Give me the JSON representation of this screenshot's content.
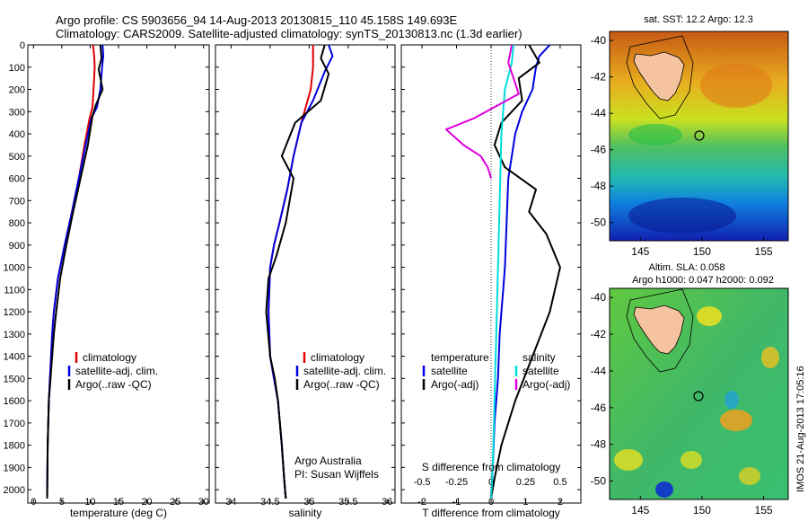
{
  "header": {
    "title_line1": "Argo profile: CS 5903656_94 14-Aug-2013 20130815_110 45.158S 149.693E",
    "title_line2": "Climatology: CARS2009. Satellite-adjusted climatology: synTS_20130813.nc (1.3d earlier)"
  },
  "side_stamp": "IMOS 21-Aug-2013 17:05:16",
  "chart_data": [
    {
      "id": "temperature",
      "type": "line",
      "xlabel": "temperature (deg C)",
      "ylabel": "",
      "xlim": [
        -1,
        31
      ],
      "ylim": [
        2060,
        0
      ],
      "xticks": [
        "0",
        "5",
        "10",
        "15",
        "20",
        "25",
        "30"
      ],
      "xtick_values": [
        0,
        5,
        10,
        15,
        20,
        25,
        30
      ],
      "yticks": [
        "0",
        "100",
        "200",
        "300",
        "400",
        "500",
        "600",
        "700",
        "800",
        "900",
        "1000",
        "1100",
        "1200",
        "1300",
        "1400",
        "1500",
        "1600",
        "1700",
        "1800",
        "1900",
        "2000"
      ],
      "legend": [
        "climatology",
        "satellite-adj. clim.",
        "Argo(..raw -QC)"
      ],
      "series": [
        {
          "name": "climatology",
          "color": "#e00000",
          "x": [
            10.5,
            10.7,
            10.8,
            10.6,
            10.4,
            9.9,
            9.0,
            8.0,
            6.8,
            5.5,
            4.3,
            3.6,
            3.3,
            3.1,
            2.9,
            2.7,
            2.5,
            2.4
          ],
          "y": [
            0,
            50,
            100,
            200,
            280,
            330,
            450,
            600,
            750,
            900,
            1050,
            1200,
            1300,
            1400,
            1500,
            1600,
            1800,
            2040
          ]
        },
        {
          "name": "satellite-adj. clim.",
          "color": "#0000e0",
          "x": [
            12.2,
            12.3,
            12.1,
            11.8,
            11.2,
            10.2,
            9.2,
            8.0,
            6.8,
            5.5,
            4.3,
            3.6,
            3.3,
            3.1,
            2.9,
            2.7,
            2.5,
            2.4
          ],
          "y": [
            0,
            50,
            100,
            200,
            280,
            330,
            450,
            600,
            750,
            900,
            1050,
            1200,
            1300,
            1400,
            1500,
            1600,
            1800,
            2040
          ]
        },
        {
          "name": "Argo(..raw -QC)",
          "color": "#000000",
          "x": [
            11.8,
            12.0,
            11.5,
            12.2,
            11.0,
            10.4,
            9.6,
            8.3,
            7.0,
            5.8,
            4.7,
            4.0,
            3.6,
            3.3,
            3.0,
            2.7,
            2.5,
            2.4
          ],
          "y": [
            0,
            60,
            110,
            200,
            270,
            320,
            450,
            600,
            750,
            900,
            1050,
            1200,
            1300,
            1400,
            1500,
            1600,
            1800,
            2040
          ]
        }
      ]
    },
    {
      "id": "salinity",
      "type": "line",
      "xlabel": "salinity",
      "ylabel": "",
      "xlim": [
        33.8,
        36.1
      ],
      "ylim": [
        2060,
        0
      ],
      "xticks": [
        "34",
        "34.5",
        "35",
        "35.5",
        "36"
      ],
      "xtick_values": [
        34,
        34.5,
        35,
        35.5,
        36
      ],
      "legend": [
        "climatology",
        "satellite-adj. clim.",
        "Argo(..raw -QC)"
      ],
      "annotation_line1": "Argo Australia",
      "annotation_line2": "PI: Susan Wijffels",
      "series": [
        {
          "name": "climatology",
          "color": "#e00000",
          "x": [
            35.05,
            35.05,
            35.02,
            34.98,
            34.9,
            34.8,
            34.72,
            34.62,
            34.55,
            34.5,
            34.48,
            34.5,
            34.55,
            34.6,
            34.65,
            34.68,
            34.7
          ],
          "y": [
            0,
            100,
            200,
            250,
            350,
            500,
            650,
            800,
            900,
            1000,
            1200,
            1400,
            1500,
            1600,
            1800,
            1950,
            2040
          ]
        },
        {
          "name": "satellite-adj. clim.",
          "color": "#0000e0",
          "x": [
            35.25,
            35.3,
            35.2,
            35.05,
            34.9,
            34.8,
            34.72,
            34.62,
            34.55,
            34.5,
            34.48,
            34.5,
            34.55,
            34.6,
            34.65,
            34.68,
            34.7
          ],
          "y": [
            0,
            50,
            120,
            250,
            350,
            500,
            650,
            800,
            900,
            1000,
            1200,
            1400,
            1500,
            1600,
            1800,
            1950,
            2040
          ]
        },
        {
          "name": "Argo(..raw -QC)",
          "color": "#000000",
          "x": [
            35.2,
            35.15,
            35.25,
            35.15,
            34.82,
            34.65,
            34.8,
            34.7,
            34.58,
            34.48,
            34.45,
            34.5,
            34.56,
            34.6,
            34.65,
            34.68,
            34.7
          ],
          "y": [
            0,
            60,
            130,
            250,
            350,
            500,
            600,
            800,
            950,
            1050,
            1200,
            1400,
            1500,
            1600,
            1800,
            1950,
            2040
          ]
        }
      ]
    },
    {
      "id": "differences",
      "type": "line",
      "xlabel": "T difference from climatology",
      "xlabel_top": "S difference from climatology",
      "xlim": [
        -2.6,
        2.6
      ],
      "ylim": [
        2060,
        0
      ],
      "xticks_T": [
        "-2",
        "-1",
        "0",
        "1",
        "2"
      ],
      "xtick_values_T": [
        -2,
        -1,
        0,
        1,
        2
      ],
      "xticks_S": [
        "-0.5",
        "-0.25",
        "0",
        "0.25",
        "0.5"
      ],
      "xtick_values_S": [
        -0.5,
        -0.25,
        0,
        0.25,
        0.5
      ],
      "legend_left_title": "temperature",
      "legend_right_title": "salinity",
      "legend": [
        "satellite",
        "Argo(-adj)",
        "satellite",
        "Argo(-adj)"
      ],
      "series": [
        {
          "name": "satellite",
          "group": "temperature",
          "color": "#0000e0",
          "x": [
            1.7,
            1.4,
            1.3,
            1.2,
            0.9,
            0.7,
            0.5,
            0.45,
            0.4,
            0.35,
            0.3,
            0.25,
            0.2,
            0.1,
            0.05,
            0.0
          ],
          "y": [
            0,
            50,
            100,
            200,
            300,
            400,
            600,
            800,
            1000,
            1100,
            1200,
            1300,
            1500,
            1700,
            1900,
            2040
          ]
        },
        {
          "name": "Argo(-adj)",
          "group": "temperature",
          "color": "#000000",
          "x": [
            1.1,
            1.4,
            0.8,
            0.9,
            0.3,
            0.1,
            0.4,
            1.3,
            1.1,
            1.6,
            2.0,
            1.7,
            1.2,
            0.7,
            0.3,
            0.1,
            0.0
          ],
          "y": [
            0,
            80,
            150,
            250,
            350,
            450,
            550,
            650,
            750,
            850,
            1000,
            1200,
            1400,
            1600,
            1800,
            1950,
            2040
          ]
        },
        {
          "name": "satellite",
          "group": "salinity",
          "color": "#00dddd",
          "x": [
            0.65,
            0.6,
            0.4,
            0.3,
            0.25,
            0.2,
            0.15,
            0.1,
            0.05,
            0.0
          ],
          "y": [
            0,
            80,
            200,
            400,
            700,
            1000,
            1300,
            1600,
            1900,
            2040
          ]
        },
        {
          "name": "Argo(-adj)",
          "group": "salinity",
          "color": "#dd00dd",
          "x": [
            0.6,
            0.5,
            0.8,
            0.1,
            -0.5,
            -1.3,
            -0.8,
            -0.3,
            -0.1,
            0.0
          ],
          "y": [
            0,
            80,
            220,
            280,
            330,
            380,
            450,
            500,
            550,
            600
          ]
        }
      ]
    },
    {
      "id": "sst_map",
      "type": "heatmap",
      "title": "sat. SST: 12.2  Argo: 12.3",
      "xticks": [
        "145",
        "150",
        "155"
      ],
      "yticks": [
        "-40",
        "-42",
        "-44",
        "-46",
        "-48",
        "-50"
      ],
      "marker_lon": 149.693,
      "marker_lat": -45.158
    },
    {
      "id": "sla_map",
      "type": "heatmap",
      "title_line1": "Altim. SLA: 0.058",
      "title_line2": "Argo h1000: 0.047  h2000: 0.092",
      "xticks": [
        "145",
        "150",
        "155"
      ],
      "yticks": [
        "-40",
        "-42",
        "-44",
        "-46",
        "-48",
        "-50"
      ],
      "marker_lon": 149.693,
      "marker_lat": -45.158
    }
  ]
}
